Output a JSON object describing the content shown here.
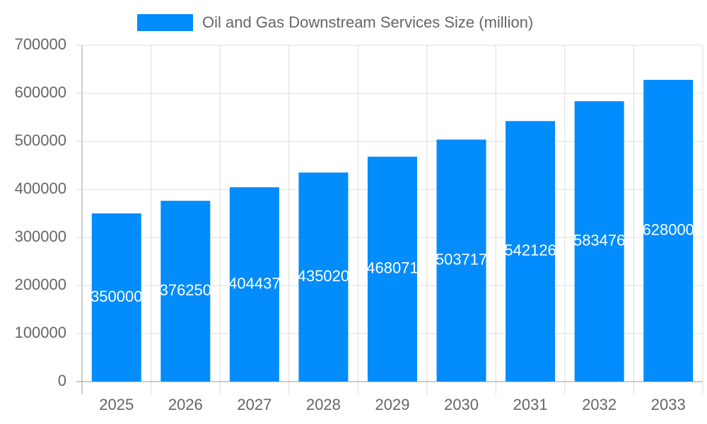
{
  "chart_data": {
    "type": "bar",
    "categories": [
      "2025",
      "2026",
      "2027",
      "2028",
      "2029",
      "2030",
      "2031",
      "2032",
      "2033"
    ],
    "series": [
      {
        "name": "Oil and Gas Downstream Services Size (million)",
        "color": "#038cfc",
        "values": [
          350000,
          376250,
          404437,
          435020,
          468071,
          503717,
          542126,
          583476,
          628000
        ]
      }
    ],
    "ylim": [
      0,
      700000
    ],
    "yticks": [
      0,
      100000,
      200000,
      300000,
      400000,
      500000,
      600000,
      700000
    ],
    "grid": true,
    "legend": "top"
  }
}
